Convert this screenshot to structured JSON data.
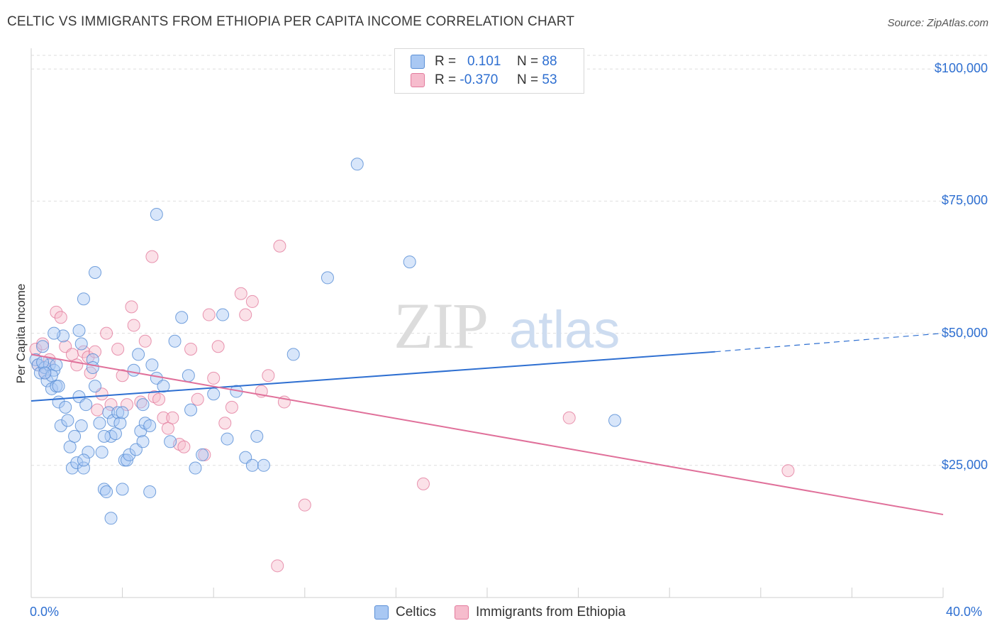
{
  "title": "CELTIC VS IMMIGRANTS FROM ETHIOPIA PER CAPITA INCOME CORRELATION CHART",
  "source": "Source: ZipAtlas.com",
  "watermark": {
    "zip": "ZIP",
    "atlas": "atlas"
  },
  "colors": {
    "celtic_fill": "#a9c8f3",
    "celtic_stroke": "#5b8fd6",
    "celtic_line": "#2e6fd1",
    "ethiopia_fill": "#f6bccd",
    "ethiopia_stroke": "#e27a9c",
    "ethiopia_line": "#e0709a",
    "accent_text": "#2e6fd1"
  },
  "legend_top": {
    "rows": [
      {
        "r_label": "R =",
        "r_value": "0.101",
        "n_label": "N =",
        "n_value": "88"
      },
      {
        "r_label": "R =",
        "r_value": "-0.370",
        "n_label": "N =",
        "n_value": "53"
      }
    ]
  },
  "legend_bottom": {
    "items": [
      "Celtics",
      "Immigrants from Ethiopia"
    ]
  },
  "chart_data": {
    "type": "scatter",
    "ylabel": "Per Capita Income",
    "xlim": [
      0,
      40
    ],
    "ylim": [
      0,
      105000
    ],
    "x_tick_labels": {
      "min": "0.0%",
      "max": "40.0%"
    },
    "y_ticks": [
      {
        "value": 25000,
        "label": "$25,000"
      },
      {
        "value": 50000,
        "label": "$50,000"
      },
      {
        "value": 75000,
        "label": "$75,000"
      },
      {
        "value": 100000,
        "label": "$100,000"
      }
    ],
    "grid": true,
    "series": [
      {
        "name": "Celtics",
        "trend": {
          "x": [
            0,
            30
          ],
          "y": [
            37200,
            46500
          ],
          "dashed_to": [
            40,
            50000
          ]
        },
        "points": [
          [
            0.2,
            45000
          ],
          [
            0.3,
            44000
          ],
          [
            0.4,
            42500
          ],
          [
            0.5,
            47500
          ],
          [
            0.6,
            43500
          ],
          [
            0.7,
            41000
          ],
          [
            0.8,
            44000
          ],
          [
            0.9,
            39500
          ],
          [
            1.0,
            43000
          ],
          [
            1.1,
            40000
          ],
          [
            1.2,
            37000
          ],
          [
            1.3,
            32500
          ],
          [
            1.4,
            49500
          ],
          [
            1.5,
            36000
          ],
          [
            1.6,
            33500
          ],
          [
            1.7,
            28500
          ],
          [
            1.8,
            24500
          ],
          [
            1.9,
            30500
          ],
          [
            2.0,
            25500
          ],
          [
            2.1,
            38000
          ],
          [
            2.2,
            32500
          ],
          [
            2.3,
            24500
          ],
          [
            2.4,
            36500
          ],
          [
            2.5,
            27500
          ],
          [
            2.7,
            45000
          ],
          [
            2.8,
            40000
          ],
          [
            3.0,
            33000
          ],
          [
            3.1,
            27500
          ],
          [
            3.2,
            20500
          ],
          [
            3.3,
            20000
          ],
          [
            3.4,
            35000
          ],
          [
            3.5,
            30500
          ],
          [
            3.6,
            33500
          ],
          [
            3.7,
            31000
          ],
          [
            3.8,
            35000
          ],
          [
            3.9,
            33000
          ],
          [
            4.0,
            20500
          ],
          [
            4.1,
            26000
          ],
          [
            4.2,
            26000
          ],
          [
            4.3,
            27000
          ],
          [
            4.6,
            28000
          ],
          [
            4.7,
            46000
          ],
          [
            4.8,
            31500
          ],
          [
            4.9,
            29500
          ],
          [
            5.0,
            33000
          ],
          [
            5.2,
            32500
          ],
          [
            5.3,
            44000
          ],
          [
            5.5,
            41500
          ],
          [
            5.8,
            40000
          ],
          [
            6.1,
            29500
          ],
          [
            6.3,
            48500
          ],
          [
            6.6,
            53000
          ],
          [
            6.9,
            42000
          ],
          [
            7.0,
            35500
          ],
          [
            7.2,
            24500
          ],
          [
            7.5,
            27000
          ],
          [
            8.0,
            38500
          ],
          [
            8.4,
            53500
          ],
          [
            8.6,
            30000
          ],
          [
            9.0,
            39000
          ],
          [
            9.4,
            26500
          ],
          [
            9.7,
            25000
          ],
          [
            9.9,
            30500
          ],
          [
            10.2,
            25000
          ],
          [
            11.5,
            46000
          ],
          [
            13.0,
            60500
          ],
          [
            14.3,
            82000
          ],
          [
            16.6,
            63500
          ],
          [
            25.6,
            33500
          ],
          [
            1.0,
            50000
          ],
          [
            2.1,
            50500
          ],
          [
            2.2,
            48000
          ],
          [
            2.3,
            26000
          ],
          [
            2.7,
            43500
          ],
          [
            3.2,
            30500
          ],
          [
            3.5,
            15000
          ],
          [
            4.0,
            35000
          ],
          [
            4.5,
            43000
          ],
          [
            4.9,
            36500
          ],
          [
            5.2,
            20000
          ],
          [
            5.5,
            72500
          ],
          [
            0.9,
            42000
          ],
          [
            1.1,
            44000
          ],
          [
            2.3,
            56500
          ],
          [
            2.8,
            61500
          ],
          [
            0.5,
            44500
          ],
          [
            0.6,
            42500
          ],
          [
            1.2,
            40000
          ]
        ]
      },
      {
        "name": "Immigrants from Ethiopia",
        "trend": {
          "x": [
            0,
            40
          ],
          "y": [
            46000,
            15700
          ]
        },
        "points": [
          [
            0.2,
            47000
          ],
          [
            0.3,
            44000
          ],
          [
            0.5,
            48000
          ],
          [
            0.6,
            42500
          ],
          [
            0.8,
            45000
          ],
          [
            1.1,
            54000
          ],
          [
            1.3,
            53000
          ],
          [
            1.5,
            47500
          ],
          [
            1.8,
            46000
          ],
          [
            2.0,
            44000
          ],
          [
            2.3,
            46500
          ],
          [
            2.5,
            45500
          ],
          [
            2.6,
            42500
          ],
          [
            2.8,
            46500
          ],
          [
            2.9,
            35500
          ],
          [
            3.1,
            38500
          ],
          [
            3.3,
            50000
          ],
          [
            3.5,
            36500
          ],
          [
            3.8,
            47000
          ],
          [
            4.0,
            42000
          ],
          [
            4.2,
            36500
          ],
          [
            4.4,
            55000
          ],
          [
            4.5,
            51500
          ],
          [
            4.8,
            37000
          ],
          [
            5.0,
            48500
          ],
          [
            5.3,
            64500
          ],
          [
            5.4,
            38000
          ],
          [
            5.6,
            37500
          ],
          [
            5.8,
            34000
          ],
          [
            6.0,
            32000
          ],
          [
            6.2,
            34000
          ],
          [
            6.5,
            29000
          ],
          [
            6.7,
            28500
          ],
          [
            7.0,
            47000
          ],
          [
            7.3,
            37500
          ],
          [
            7.6,
            27000
          ],
          [
            7.8,
            53500
          ],
          [
            8.0,
            41500
          ],
          [
            8.2,
            47500
          ],
          [
            8.5,
            33000
          ],
          [
            8.8,
            36000
          ],
          [
            9.2,
            57500
          ],
          [
            9.4,
            53500
          ],
          [
            9.7,
            56000
          ],
          [
            10.1,
            39000
          ],
          [
            10.4,
            42000
          ],
          [
            10.9,
            66500
          ],
          [
            11.1,
            37000
          ],
          [
            12.0,
            17500
          ],
          [
            10.8,
            6000
          ],
          [
            17.2,
            21500
          ],
          [
            23.6,
            34000
          ],
          [
            33.2,
            24000
          ]
        ]
      }
    ]
  }
}
